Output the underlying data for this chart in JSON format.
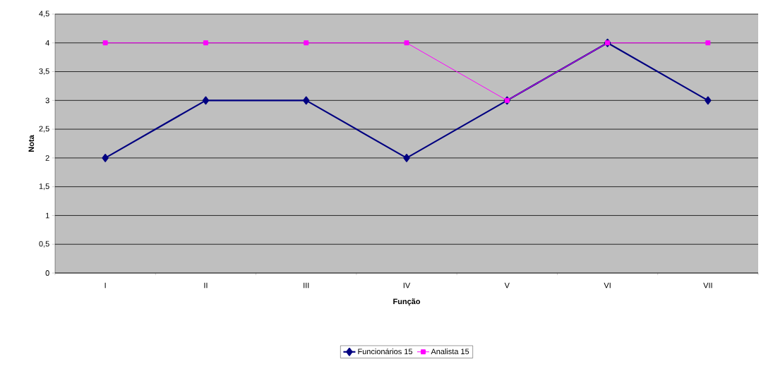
{
  "chart_data": {
    "type": "line",
    "xlabel": "Função",
    "ylabel": "Nota",
    "categories": [
      "I",
      "II",
      "III",
      "IV",
      "V",
      "VI",
      "VII"
    ],
    "series": [
      {
        "name": "Funcionários 15",
        "color": "#000080",
        "marker": "diamond",
        "values": [
          2,
          3,
          3,
          2,
          3,
          4,
          3
        ]
      },
      {
        "name": "Analista 15",
        "color": "#ff00ff",
        "marker": "square",
        "values": [
          4,
          4,
          4,
          4,
          3,
          4,
          4
        ]
      }
    ],
    "ylim": [
      0,
      4.5
    ],
    "yticks": [
      0,
      {
        "value": 0.5,
        "label": "0,5"
      },
      1,
      {
        "value": 1.5,
        "label": "1,5"
      },
      2,
      {
        "value": 2.5,
        "label": "2,5"
      },
      3,
      {
        "value": 3.5,
        "label": "3,5"
      },
      4,
      {
        "value": 4.5,
        "label": "4,5"
      }
    ],
    "grid": "y",
    "legend": "bottom",
    "line_style": "solid"
  }
}
